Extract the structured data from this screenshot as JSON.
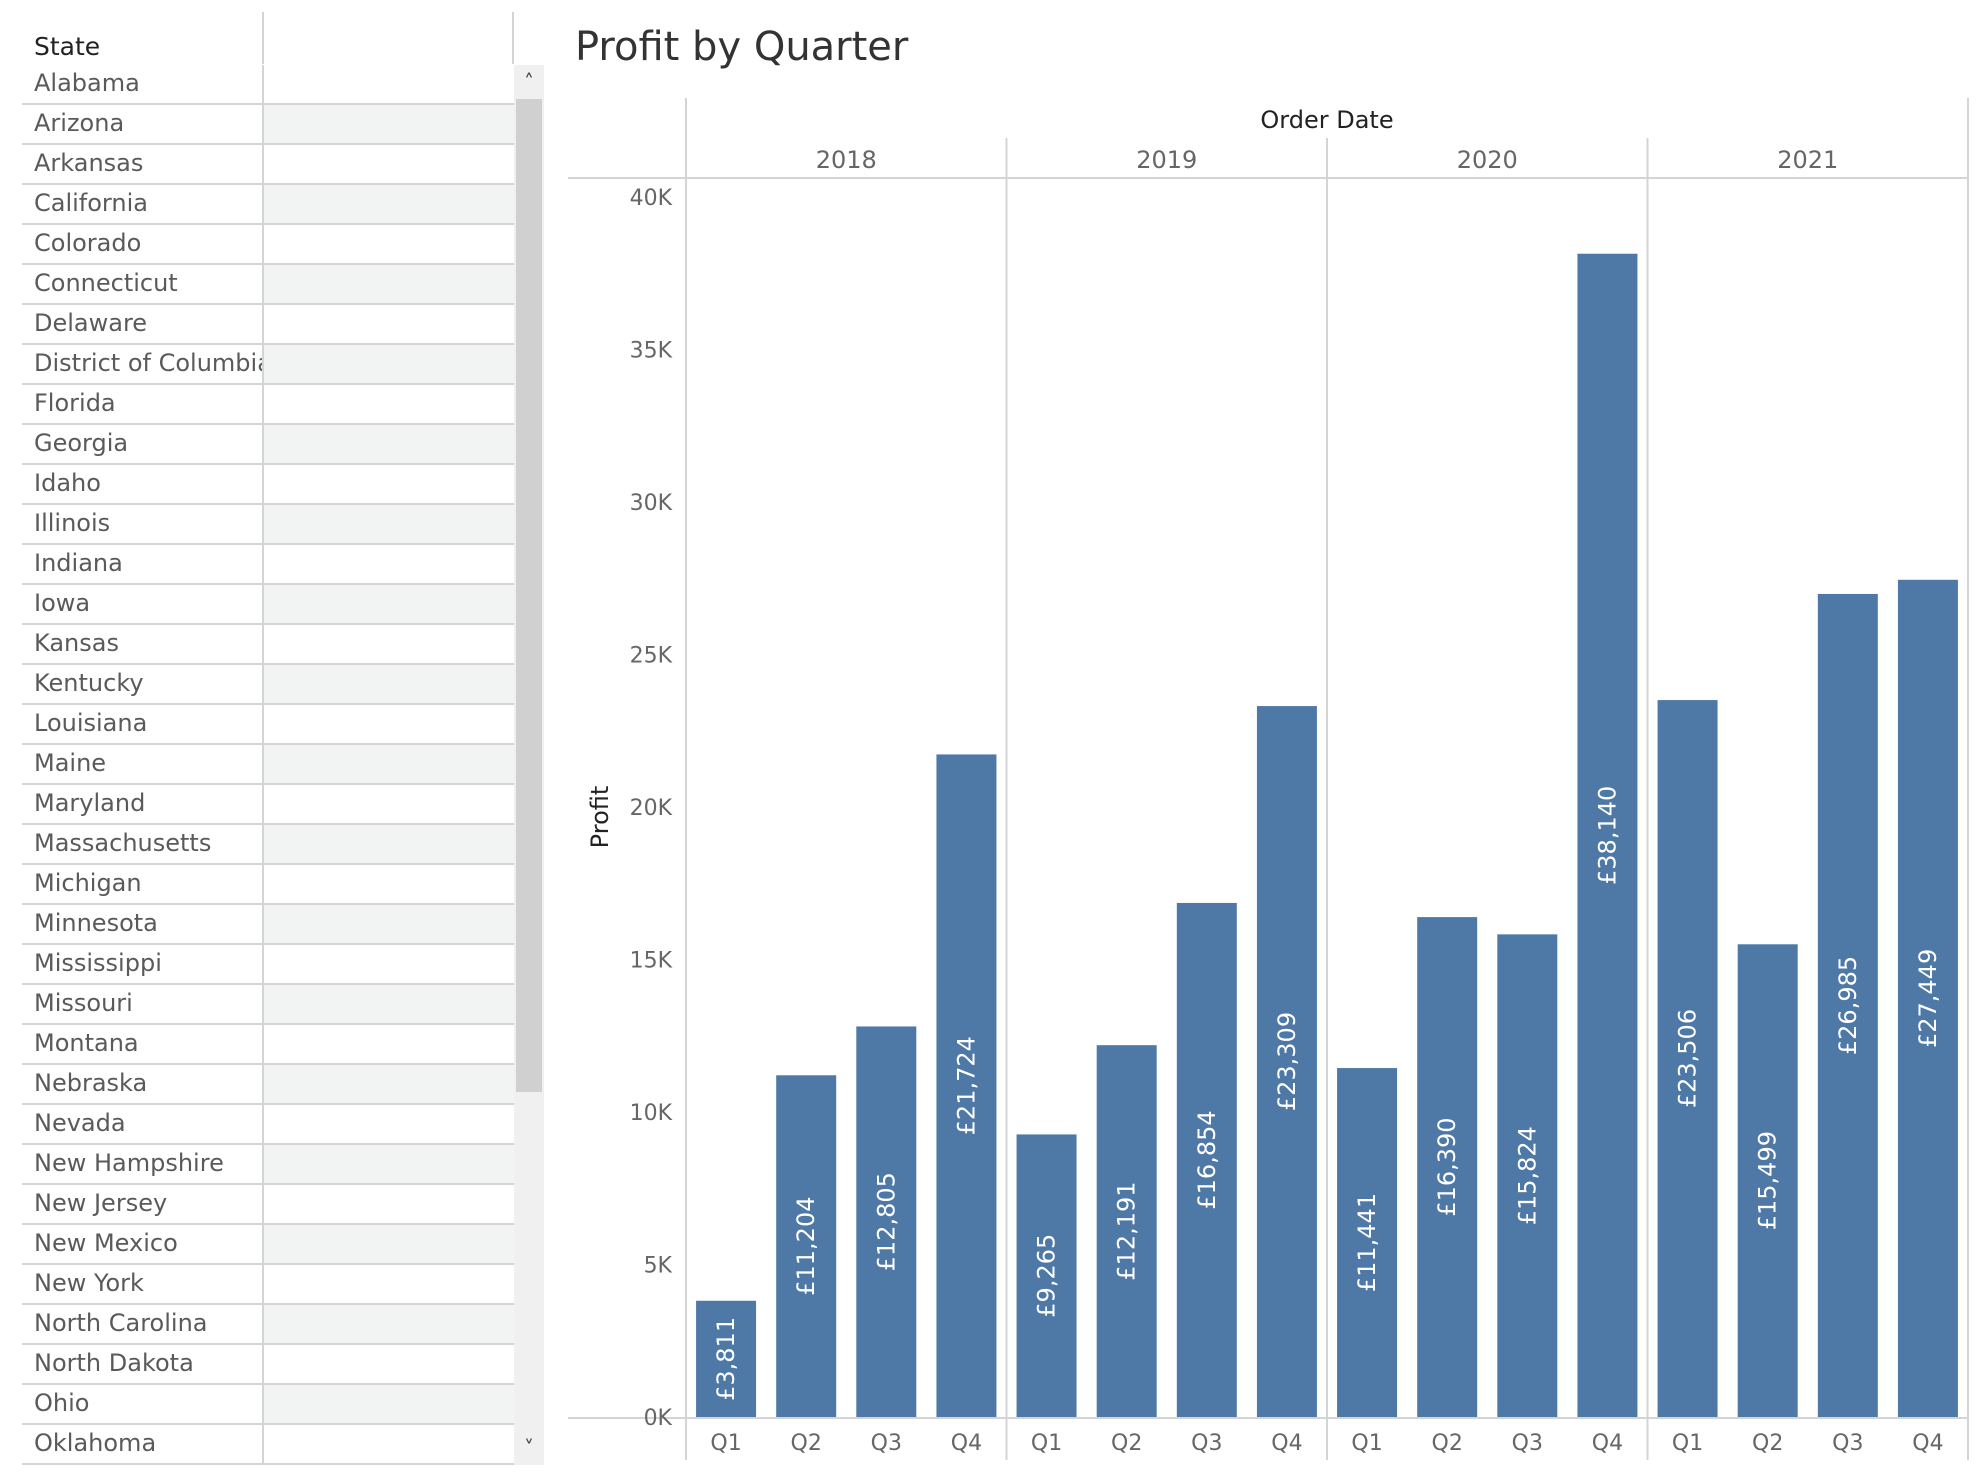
{
  "state_filter": {
    "header": "State",
    "states": [
      "Alabama",
      "Arizona",
      "Arkansas",
      "California",
      "Colorado",
      "Connecticut",
      "Delaware",
      "District of Columbia",
      "Florida",
      "Georgia",
      "Idaho",
      "Illinois",
      "Indiana",
      "Iowa",
      "Kansas",
      "Kentucky",
      "Louisiana",
      "Maine",
      "Maryland",
      "Massachusetts",
      "Michigan",
      "Minnesota",
      "Mississippi",
      "Missouri",
      "Montana",
      "Nebraska",
      "Nevada",
      "New Hampshire",
      "New Jersey",
      "New Mexico",
      "New York",
      "North Carolina",
      "North Dakota",
      "Ohio",
      "Oklahoma"
    ],
    "scroll_up_icon": "˄",
    "scroll_down_icon": "˅"
  },
  "chart_data": {
    "type": "bar",
    "title": "Profit by Quarter",
    "column_header": "Order Date",
    "years": [
      "2018",
      "2019",
      "2020",
      "2021"
    ],
    "quarters": [
      "Q1",
      "Q2",
      "Q3",
      "Q4"
    ],
    "ylabel": "Profit",
    "ylim": [
      0,
      40000
    ],
    "yticks": [
      {
        "value": 0,
        "label": "0K"
      },
      {
        "value": 5000,
        "label": "5K"
      },
      {
        "value": 10000,
        "label": "10K"
      },
      {
        "value": 15000,
        "label": "15K"
      },
      {
        "value": 20000,
        "label": "20K"
      },
      {
        "value": 25000,
        "label": "25K"
      },
      {
        "value": 30000,
        "label": "30K"
      },
      {
        "value": 35000,
        "label": "35K"
      },
      {
        "value": 40000,
        "label": "40K"
      }
    ],
    "values": [
      [
        3811,
        11204,
        12805,
        21724
      ],
      [
        9265,
        12191,
        16854,
        23309
      ],
      [
        11441,
        16390,
        15824,
        38140
      ],
      [
        23506,
        15499,
        26985,
        27449
      ]
    ],
    "labels": [
      [
        "£3,811",
        "£11,204",
        "£12,805",
        "£21,724"
      ],
      [
        "£9,265",
        "£12,191",
        "£16,854",
        "£23,309"
      ],
      [
        "£11,441",
        "£16,390",
        "£15,824",
        "£38,140"
      ],
      [
        "£23,506",
        "£15,499",
        "£26,985",
        "£27,449"
      ]
    ],
    "bar_color": "#4e79a7"
  }
}
